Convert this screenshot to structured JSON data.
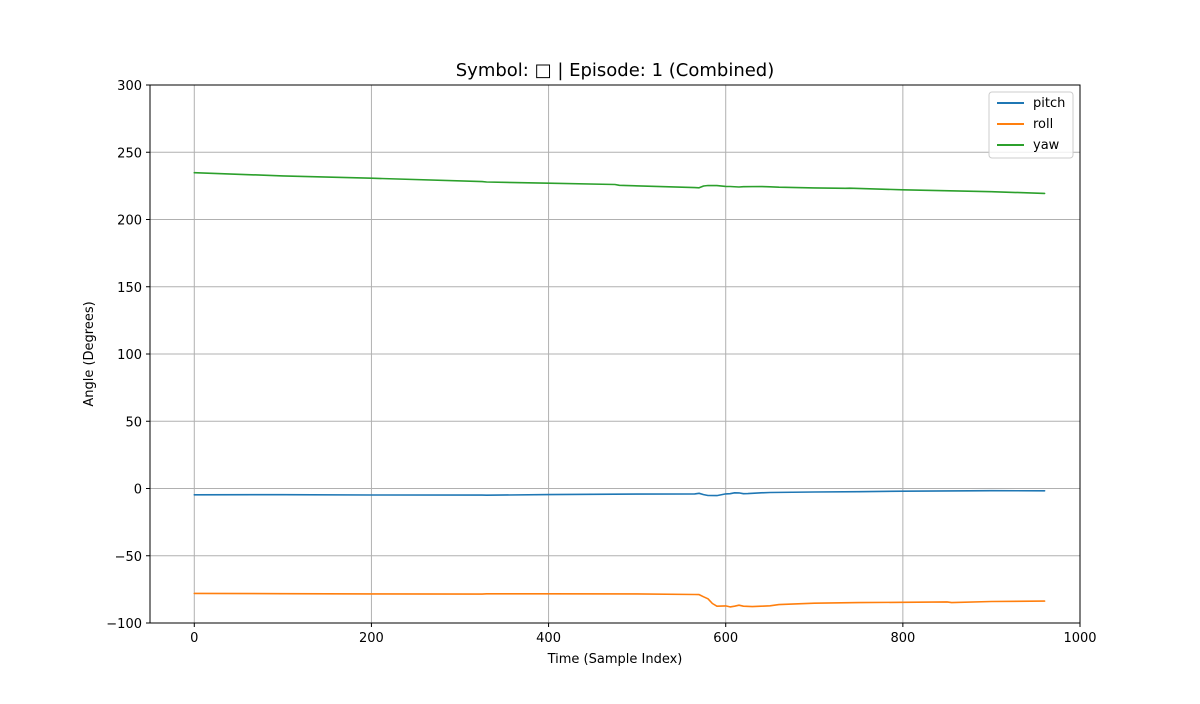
{
  "chart_data": {
    "type": "line",
    "title": "Symbol: □ | Episode: 1 (Combined)",
    "xlabel": "Time (Sample Index)",
    "ylabel": "Angle (Degrees)",
    "xlim": [
      -50,
      1000
    ],
    "ylim": [
      -100,
      300
    ],
    "xticks": [
      0,
      200,
      400,
      600,
      800,
      1000
    ],
    "yticks": [
      -100,
      -50,
      0,
      50,
      100,
      150,
      200,
      250,
      300
    ],
    "grid": true,
    "legend_position": "top-right",
    "series": [
      {
        "name": "pitch",
        "color": "#1f77b4",
        "x": [
          0,
          100,
          200,
          325,
          330,
          400,
          500,
          565,
          570,
          575,
          580,
          590,
          600,
          605,
          610,
          615,
          620,
          625,
          640,
          650,
          700,
          750,
          800,
          900,
          960
        ],
        "y": [
          -4.7,
          -4.6,
          -4.8,
          -4.9,
          -5.0,
          -4.5,
          -4.2,
          -4.0,
          -3.6,
          -4.5,
          -5.2,
          -5.3,
          -4.0,
          -3.9,
          -3.2,
          -3.3,
          -3.9,
          -3.8,
          -3.2,
          -3.0,
          -2.6,
          -2.4,
          -2.0,
          -1.6,
          -1.7
        ]
      },
      {
        "name": "roll",
        "color": "#ff7f0e",
        "x": [
          0,
          100,
          200,
          325,
          330,
          400,
          500,
          565,
          570,
          575,
          580,
          585,
          590,
          600,
          605,
          610,
          615,
          620,
          630,
          640,
          650,
          660,
          700,
          750,
          800,
          850,
          855,
          900,
          960
        ],
        "y": [
          -78.0,
          -78.2,
          -78.4,
          -78.5,
          -78.3,
          -78.3,
          -78.4,
          -78.8,
          -78.9,
          -80.5,
          -82.0,
          -85.5,
          -87.5,
          -87.3,
          -88.0,
          -87.5,
          -86.8,
          -87.5,
          -87.8,
          -87.5,
          -87.2,
          -86.3,
          -85.3,
          -84.8,
          -84.6,
          -84.3,
          -84.8,
          -84.0,
          -83.7
        ]
      },
      {
        "name": "yaw",
        "color": "#2ca02c",
        "x": [
          0,
          100,
          200,
          325,
          330,
          400,
          475,
          480,
          565,
          570,
          575,
          580,
          590,
          600,
          605,
          615,
          620,
          640,
          650,
          660,
          700,
          735,
          740,
          800,
          900,
          960
        ],
        "y": [
          234.8,
          232.4,
          230.7,
          228.2,
          227.9,
          227.0,
          226.0,
          225.4,
          223.7,
          223.6,
          224.9,
          225.3,
          225.2,
          224.6,
          224.5,
          224.2,
          224.4,
          224.5,
          224.3,
          224.0,
          223.5,
          223.2,
          223.3,
          222.1,
          220.7,
          219.4
        ]
      }
    ]
  }
}
